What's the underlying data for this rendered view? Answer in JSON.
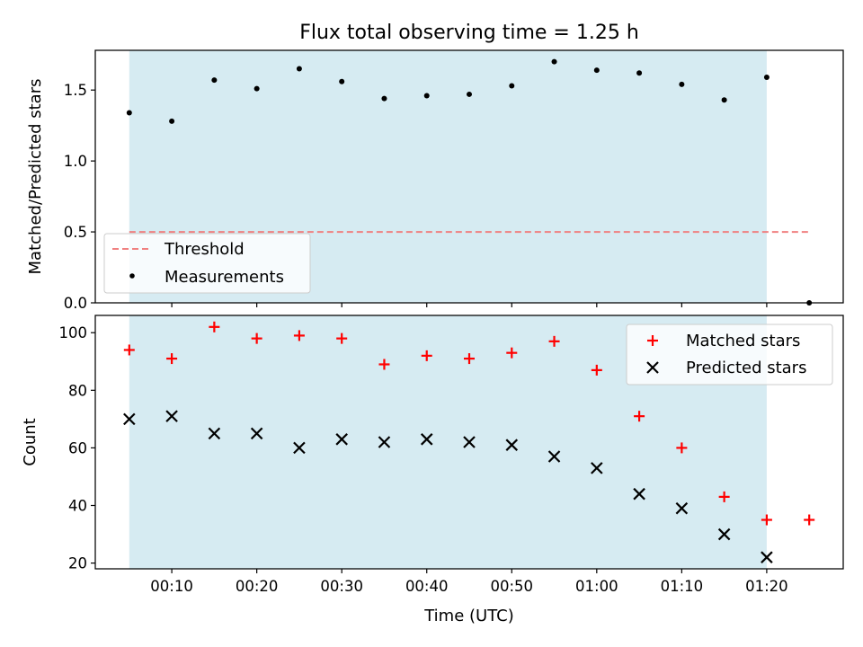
{
  "chart_data": [
    {
      "type": "scatter",
      "title": "Flux total observing time = 1.25 h",
      "ylabel": "Matched/Predicted stars",
      "xlabel": "",
      "ylim": [
        0,
        1.78
      ],
      "yticks": [
        0.0,
        0.5,
        1.0,
        1.5
      ],
      "ytick_labels": [
        "0.0",
        "0.5",
        "1.0",
        "1.5"
      ],
      "grid": false,
      "legend_location": "lower left",
      "shaded_region": {
        "x_start": "00:05",
        "x_end": "01:20",
        "color": "#add8e6"
      },
      "x": [
        "00:05",
        "00:10",
        "00:15",
        "00:20",
        "00:25",
        "00:30",
        "00:35",
        "00:40",
        "00:45",
        "00:50",
        "00:55",
        "01:00",
        "01:05",
        "01:10",
        "01:15",
        "01:20",
        "01:25"
      ],
      "series": [
        {
          "name": "Threshold",
          "style": "dashed-line",
          "color": "#f08080",
          "values": [
            0.5,
            0.5,
            0.5,
            0.5,
            0.5,
            0.5,
            0.5,
            0.5,
            0.5,
            0.5,
            0.5,
            0.5,
            0.5,
            0.5,
            0.5,
            0.5,
            0.5
          ]
        },
        {
          "name": "Measurements",
          "style": "dot",
          "color": "#000000",
          "values": [
            1.34,
            1.28,
            1.57,
            1.51,
            1.65,
            1.56,
            1.44,
            1.46,
            1.47,
            1.53,
            1.7,
            1.64,
            1.62,
            1.54,
            1.43,
            1.59,
            0.0
          ]
        }
      ]
    },
    {
      "type": "scatter",
      "title": "",
      "ylabel": "Count",
      "xlabel": "Time (UTC)",
      "ylim": [
        18,
        106
      ],
      "yticks": [
        20,
        40,
        60,
        80,
        100
      ],
      "ytick_labels": [
        "20",
        "40",
        "60",
        "80",
        "100"
      ],
      "xticks": [
        "00:10",
        "00:20",
        "00:30",
        "00:40",
        "00:50",
        "01:00",
        "01:10",
        "01:20"
      ],
      "grid": false,
      "legend_location": "upper right",
      "shaded_region": {
        "x_start": "00:05",
        "x_end": "01:20",
        "color": "#add8e6"
      },
      "x": [
        "00:05",
        "00:10",
        "00:15",
        "00:20",
        "00:25",
        "00:30",
        "00:35",
        "00:40",
        "00:45",
        "00:50",
        "00:55",
        "01:00",
        "01:05",
        "01:10",
        "01:15",
        "01:20",
        "01:25"
      ],
      "series": [
        {
          "name": "Matched stars",
          "style": "plus",
          "color": "#ff0000",
          "values": [
            94,
            91,
            102,
            98,
            99,
            98,
            89,
            92,
            91,
            93,
            97,
            87,
            71,
            60,
            43,
            35,
            35
          ]
        },
        {
          "name": "Predicted stars",
          "style": "cross",
          "color": "#000000",
          "values": [
            70,
            71,
            65,
            65,
            60,
            63,
            62,
            63,
            62,
            61,
            57,
            53,
            44,
            39,
            30,
            22,
            null
          ]
        }
      ]
    }
  ]
}
